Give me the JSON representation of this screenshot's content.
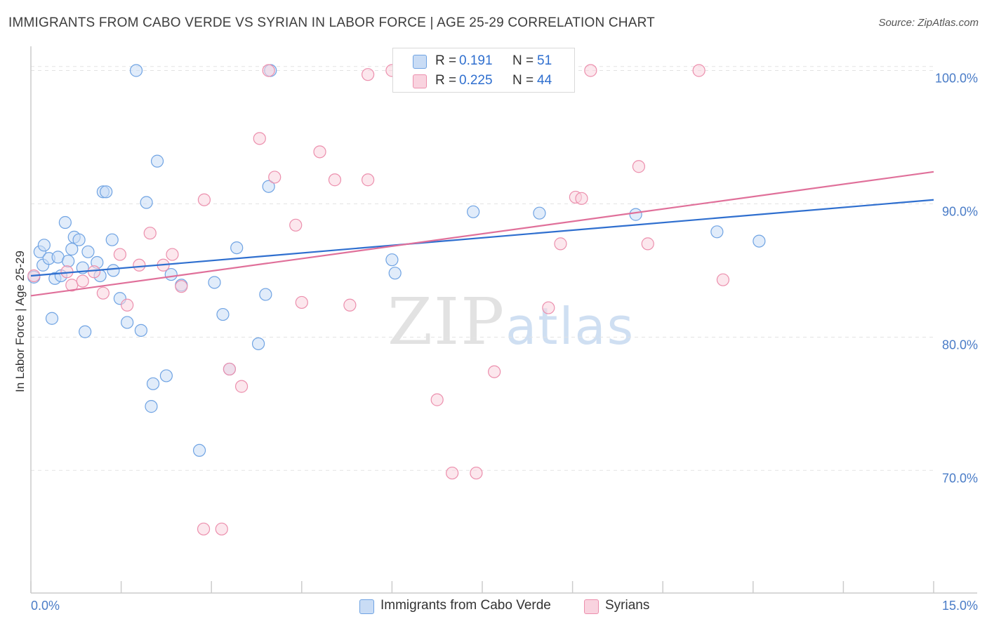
{
  "title": "IMMIGRANTS FROM CABO VERDE VS SYRIAN IN LABOR FORCE | AGE 25-29 CORRELATION CHART",
  "source": "Source: ZipAtlas.com",
  "watermark": {
    "zip": "ZIP",
    "atlas": "atlas"
  },
  "legend": {
    "rows": [
      {
        "r_label": "R =",
        "r_value": "0.191",
        "n_label": "N =",
        "n_value": "51",
        "color": "#a9c8f0"
      },
      {
        "r_label": "R =",
        "r_value": "0.225",
        "n_label": "N =",
        "n_value": "44",
        "color": "#f7b8cb"
      }
    ]
  },
  "bottom_legend": {
    "items": [
      {
        "label": "Immigrants from Cabo Verde",
        "color": "#a9c8f0"
      },
      {
        "label": "Syrians",
        "color": "#f7b8cb"
      }
    ]
  },
  "chart_data": {
    "type": "scatter",
    "title": "IMMIGRANTS FROM CABO VERDE VS SYRIAN IN LABOR FORCE | AGE 25-29 CORRELATION CHART",
    "xlabel": "",
    "ylabel": "In Labor Force | Age 25-29",
    "xlim": [
      0,
      15
    ],
    "ylim": [
      60.8,
      101.5
    ],
    "x_tick_labels": [
      "0.0%",
      "15.0%"
    ],
    "y_ticks": [
      70,
      80,
      90,
      100
    ],
    "y_tick_labels": [
      "70.0%",
      "80.0%",
      "90.0%",
      "100.0%"
    ],
    "grid": true,
    "legend_position": "top-center",
    "series": [
      {
        "name": "Immigrants from Cabo Verde",
        "color": "#6fa3e3",
        "fill": "#c9dcf5",
        "trend": {
          "x": [
            0,
            15
          ],
          "y": [
            84.6,
            90.3
          ],
          "color": "#2f6fcf"
        },
        "points": [
          [
            0.05,
            84.5
          ],
          [
            0.15,
            86.4
          ],
          [
            0.2,
            85.4
          ],
          [
            0.22,
            86.9
          ],
          [
            0.3,
            85.9
          ],
          [
            0.35,
            81.4
          ],
          [
            0.4,
            84.4
          ],
          [
            0.45,
            86.0
          ],
          [
            0.5,
            84.6
          ],
          [
            0.57,
            88.6
          ],
          [
            0.62,
            85.7
          ],
          [
            0.68,
            86.6
          ],
          [
            0.72,
            87.5
          ],
          [
            0.8,
            87.3
          ],
          [
            0.86,
            85.2
          ],
          [
            0.9,
            80.4
          ],
          [
            0.95,
            86.4
          ],
          [
            1.1,
            85.6
          ],
          [
            1.15,
            84.6
          ],
          [
            1.2,
            90.9
          ],
          [
            1.25,
            90.9
          ],
          [
            1.35,
            87.3
          ],
          [
            1.37,
            85.0
          ],
          [
            1.48,
            82.9
          ],
          [
            1.6,
            81.1
          ],
          [
            1.75,
            100.0
          ],
          [
            1.83,
            80.5
          ],
          [
            1.92,
            90.1
          ],
          [
            2.0,
            74.8
          ],
          [
            2.03,
            76.5
          ],
          [
            2.1,
            93.2
          ],
          [
            2.25,
            77.1
          ],
          [
            2.33,
            84.7
          ],
          [
            2.5,
            83.9
          ],
          [
            2.8,
            71.5
          ],
          [
            3.05,
            84.1
          ],
          [
            3.19,
            81.7
          ],
          [
            3.3,
            77.6
          ],
          [
            3.42,
            86.7
          ],
          [
            3.78,
            79.5
          ],
          [
            3.9,
            83.2
          ],
          [
            3.95,
            91.3
          ],
          [
            3.98,
            100.0
          ],
          [
            6.0,
            85.8
          ],
          [
            6.05,
            84.8
          ],
          [
            6.32,
            100.0
          ],
          [
            7.35,
            89.4
          ],
          [
            8.45,
            89.3
          ],
          [
            10.05,
            89.2
          ],
          [
            11.4,
            87.9
          ],
          [
            12.1,
            87.2
          ]
        ]
      },
      {
        "name": "Syrians",
        "color": "#ec8fad",
        "fill": "#f9d3df",
        "trend": {
          "x": [
            0,
            15
          ],
          "y": [
            83.1,
            92.4
          ],
          "color": "#e0709a"
        },
        "points": [
          [
            0.05,
            84.6
          ],
          [
            0.6,
            84.9
          ],
          [
            0.68,
            83.9
          ],
          [
            0.86,
            84.2
          ],
          [
            1.05,
            84.9
          ],
          [
            1.2,
            83.3
          ],
          [
            1.48,
            86.2
          ],
          [
            1.6,
            82.4
          ],
          [
            1.8,
            85.4
          ],
          [
            1.98,
            87.8
          ],
          [
            2.2,
            85.4
          ],
          [
            2.35,
            86.2
          ],
          [
            2.5,
            83.8
          ],
          [
            2.88,
            90.3
          ],
          [
            2.87,
            65.6
          ],
          [
            3.17,
            65.6
          ],
          [
            3.3,
            77.6
          ],
          [
            3.5,
            76.3
          ],
          [
            3.8,
            94.9
          ],
          [
            3.95,
            100.0
          ],
          [
            4.05,
            92.0
          ],
          [
            4.4,
            88.4
          ],
          [
            4.5,
            82.6
          ],
          [
            4.8,
            93.9
          ],
          [
            5.05,
            91.8
          ],
          [
            5.3,
            82.4
          ],
          [
            5.6,
            91.8
          ],
          [
            5.6,
            99.7
          ],
          [
            6.0,
            100.0
          ],
          [
            6.3,
            100.0
          ],
          [
            6.75,
            75.3
          ],
          [
            7.0,
            69.8
          ],
          [
            7.4,
            69.8
          ],
          [
            7.7,
            77.4
          ],
          [
            8.6,
            82.2
          ],
          [
            8.8,
            87.0
          ],
          [
            9.05,
            90.5
          ],
          [
            9.15,
            90.4
          ],
          [
            9.3,
            100.0
          ],
          [
            10.1,
            92.8
          ],
          [
            10.25,
            87.0
          ],
          [
            11.1,
            100.0
          ],
          [
            11.5,
            84.3
          ],
          [
            7.9,
            99.8
          ]
        ]
      }
    ]
  }
}
